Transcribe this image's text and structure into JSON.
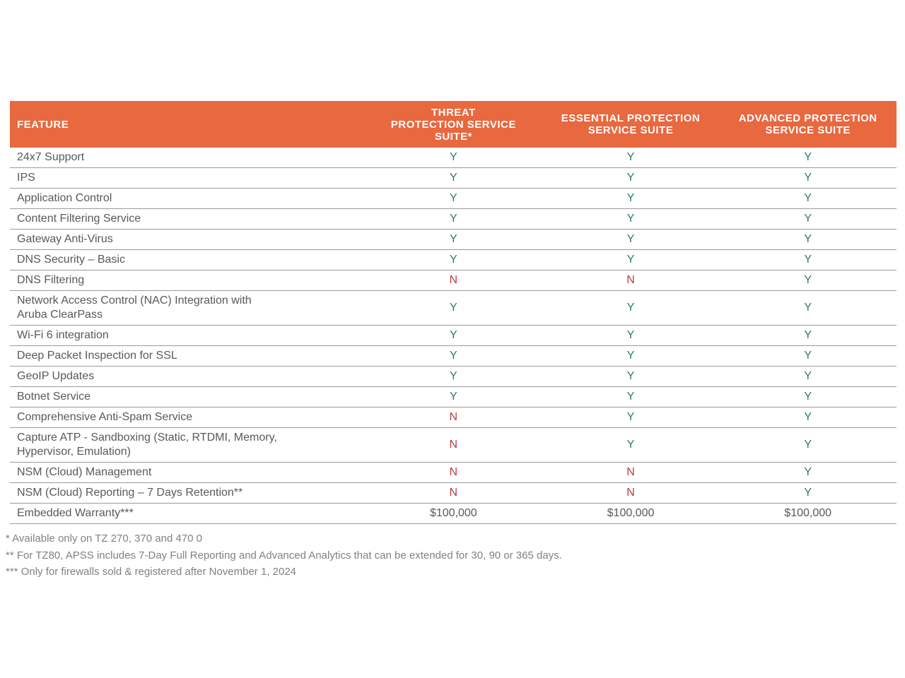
{
  "colors": {
    "header_bg": "#E8683F",
    "yes_text": "#2A7A72",
    "no_text": "#B93B3F",
    "body_text": "#58595B",
    "separator_line": "#9B9B9B",
    "footnote_text": "#808184"
  },
  "table": {
    "header": {
      "feature": "FEATURE",
      "col1": "THREAT\nPROTECTION SERVICE\nSUITE*",
      "col2": "ESSENTIAL PROTECTION\nSERVICE SUITE",
      "col3": "ADVANCED PROTECTION\nSERVICE SUITE"
    },
    "rows": [
      {
        "feature": "24x7 Support",
        "values": [
          "Y",
          "Y",
          "Y"
        ]
      },
      {
        "feature": "IPS",
        "values": [
          "Y",
          "Y",
          "Y"
        ]
      },
      {
        "feature": "Application Control",
        "values": [
          "Y",
          "Y",
          "Y"
        ]
      },
      {
        "feature": "Content Filtering Service",
        "values": [
          "Y",
          "Y",
          "Y"
        ]
      },
      {
        "feature": "Gateway Anti-Virus",
        "values": [
          "Y",
          "Y",
          "Y"
        ]
      },
      {
        "feature": "DNS Security – Basic",
        "values": [
          "Y",
          "Y",
          "Y"
        ]
      },
      {
        "feature": "DNS Filtering",
        "values": [
          "N",
          "N",
          "Y"
        ]
      },
      {
        "feature": "Network Access Control (NAC) Integration with\nAruba ClearPass",
        "values": [
          "Y",
          "Y",
          "Y"
        ]
      },
      {
        "feature": "Wi-Fi 6 integration",
        "values": [
          "Y",
          "Y",
          "Y"
        ]
      },
      {
        "feature": "Deep Packet Inspection for SSL",
        "values": [
          "Y",
          "Y",
          "Y"
        ]
      },
      {
        "feature": "GeoIP Updates",
        "values": [
          "Y",
          "Y",
          "Y"
        ]
      },
      {
        "feature": "Botnet Service",
        "values": [
          "Y",
          "Y",
          "Y"
        ]
      },
      {
        "feature": "Comprehensive Anti-Spam Service",
        "values": [
          "N",
          "Y",
          "Y"
        ]
      },
      {
        "feature": "Capture ATP -  Sandboxing (Static, RTDMI, Memory,\nHypervisor, Emulation)",
        "values": [
          "N",
          "Y",
          "Y"
        ]
      },
      {
        "feature": "NSM (Cloud) Management",
        "values": [
          "N",
          "N",
          "Y"
        ]
      },
      {
        "feature": "NSM (Cloud) Reporting – 7 Days Retention**",
        "values": [
          "N",
          "N",
          "Y"
        ]
      },
      {
        "feature": "Embedded Warranty***",
        "values": [
          "$100,000",
          "$100,000",
          "$100,000"
        ]
      }
    ]
  },
  "footnotes": [
    "* Available only on TZ 270, 370 and 470 0",
    "** For TZ80, APSS includes 7-Day Full Reporting and Advanced Analytics that can be extended for 30, 90 or 365 days.",
    "*** Only for firewalls sold & registered after November 1, 2024"
  ]
}
